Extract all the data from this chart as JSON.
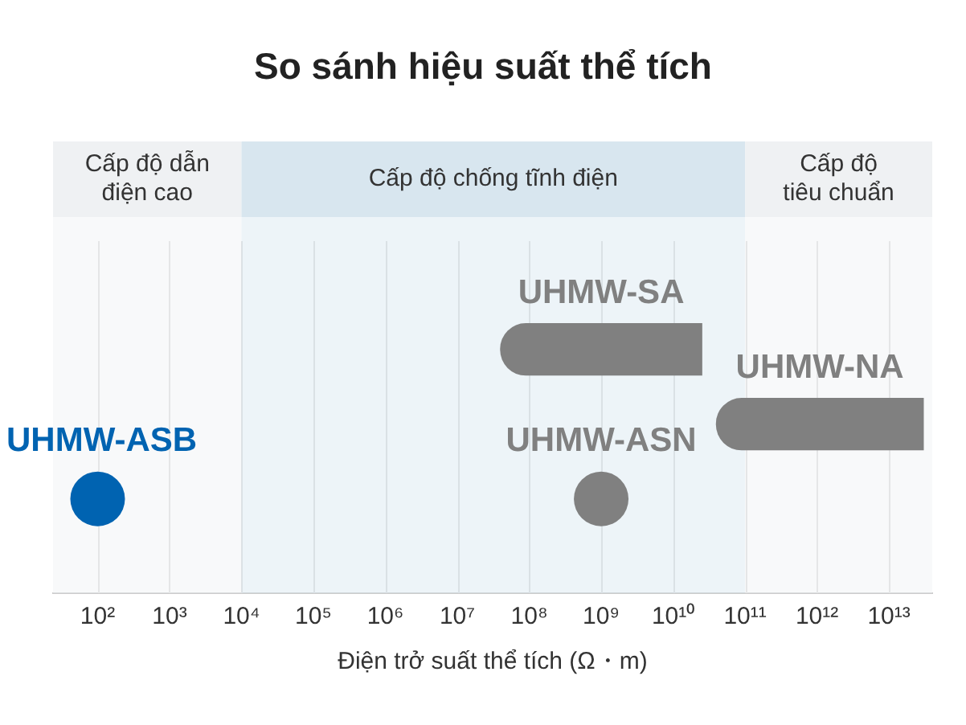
{
  "chart_data": {
    "type": "bar",
    "orientation": "horizontal",
    "title": "So sánh hiệu suất thể tích",
    "xlabel": "Điện trở suất thể tích (Ω・m)",
    "log": "x",
    "grid": "x",
    "legend": false,
    "categories": [
      null,
      null,
      null
    ],
    "xlim": [
      24,
      40000000000000
    ],
    "xticks": [
      {
        "value": 100,
        "label": "10²"
      },
      {
        "value": 1000,
        "label": "10³"
      },
      {
        "value": 10000,
        "label": "10⁴"
      },
      {
        "value": 100000,
        "label": "10⁵"
      },
      {
        "value": 1000000,
        "label": "10⁶"
      },
      {
        "value": 10000000,
        "label": "10⁷"
      },
      {
        "value": 100000000,
        "label": "10⁸"
      },
      {
        "value": 1000000000,
        "label": "10⁹"
      },
      {
        "value": 10000000000,
        "label": "10¹⁰"
      },
      {
        "value": 100000000000,
        "label": "10¹¹"
      },
      {
        "value": 1000000000000,
        "label": "10¹²"
      },
      {
        "value": 10000000000000,
        "label": "10¹³"
      }
    ],
    "series": [
      {
        "name": "UHMW-SA",
        "color": "#808080",
        "base": [
          40000000,
          null,
          null
        ],
        "values": [
          24960000000,
          null,
          null
        ]
      },
      {
        "name": "UHMW-NA",
        "color": "#808080",
        "base": [
          null,
          40000000000,
          null
        ],
        "values": [
          null,
          29960000000000,
          null
        ]
      },
      {
        "name": "UHMW-ASB",
        "type": "scatter",
        "color": "#0063b1",
        "values": [
          null,
          null,
          100
        ]
      },
      {
        "name": "UHMW-ASN",
        "type": "scatter",
        "color": "#808080",
        "values": [
          null,
          null,
          1000000000
        ]
      }
    ],
    "bands": [
      {
        "axis": "x",
        "from": 24,
        "to": 10000,
        "label": "Cấp độ dẫn\nđiện cao",
        "color": "#eff1f3"
      },
      {
        "axis": "x",
        "from": 10000,
        "to": 100000000000,
        "label": "Cấp độ chống tĩnh điện",
        "color": "#d8e6ef"
      },
      {
        "axis": "x",
        "from": 100000000000,
        "to": 40000000000000,
        "label": "Cấp độ\ntiêu chuẩn",
        "color": "#eff1f3"
      }
    ]
  }
}
